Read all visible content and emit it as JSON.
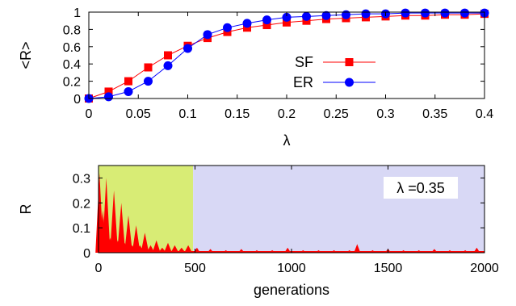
{
  "chart_data": [
    {
      "type": "line",
      "xlabel": "λ",
      "ylabel": "<R>",
      "xlim": [
        0,
        0.4
      ],
      "ylim": [
        0,
        1
      ],
      "x_ticks": [
        "0",
        "0.05",
        "0.1",
        "0.15",
        "0.2",
        "0.25",
        "0.3",
        "0.35",
        "0.4"
      ],
      "y_ticks": [
        "0",
        "0.2",
        "0.4",
        "0.6",
        "0.8",
        "1"
      ],
      "legend_position": "center-right",
      "grid": false,
      "series": [
        {
          "name": "SF",
          "color": "#ff0000",
          "marker": "square",
          "x": [
            0,
            0.02,
            0.04,
            0.06,
            0.08,
            0.1,
            0.12,
            0.14,
            0.16,
            0.18,
            0.2,
            0.22,
            0.24,
            0.26,
            0.28,
            0.3,
            0.32,
            0.34,
            0.36,
            0.38,
            0.4
          ],
          "y": [
            0.0,
            0.08,
            0.2,
            0.36,
            0.5,
            0.61,
            0.7,
            0.77,
            0.82,
            0.85,
            0.88,
            0.9,
            0.92,
            0.93,
            0.94,
            0.95,
            0.96,
            0.96,
            0.97,
            0.97,
            0.98
          ]
        },
        {
          "name": "ER",
          "color": "#0000ff",
          "marker": "circle",
          "x": [
            0,
            0.02,
            0.04,
            0.06,
            0.08,
            0.1,
            0.12,
            0.14,
            0.16,
            0.18,
            0.2,
            0.22,
            0.24,
            0.26,
            0.28,
            0.3,
            0.32,
            0.34,
            0.36,
            0.38,
            0.4
          ],
          "y": [
            0.0,
            0.02,
            0.08,
            0.2,
            0.38,
            0.58,
            0.74,
            0.82,
            0.87,
            0.91,
            0.94,
            0.95,
            0.96,
            0.97,
            0.98,
            0.98,
            0.99,
            0.99,
            0.99,
            0.99,
            0.99
          ]
        }
      ]
    },
    {
      "type": "area",
      "xlabel": "generations",
      "ylabel": "R",
      "xlim": [
        0,
        2000
      ],
      "ylim": [
        0,
        0.35
      ],
      "x_ticks": [
        "0",
        "500",
        "1000",
        "1500",
        "2000"
      ],
      "y_ticks": [
        "0",
        "0.1",
        "0.2",
        "0.3"
      ],
      "annotation": "λ =0.35",
      "grid": false,
      "regions": [
        {
          "x_start": 0,
          "x_end": 490,
          "color": "#d8ec75"
        },
        {
          "x_start": 490,
          "x_end": 2000,
          "color": "#d8d8f5"
        }
      ],
      "series": [
        {
          "color": "#ff0000",
          "x": [
            5,
            22,
            40,
            60,
            80,
            100,
            118,
            136,
            155,
            175,
            195,
            215,
            240,
            270,
            300,
            330,
            360,
            395,
            430,
            465,
            510,
            580,
            660,
            740,
            820,
            900,
            980,
            1060,
            1140,
            1220,
            1300,
            1340,
            1420,
            1500,
            1580,
            1660,
            1740,
            1820,
            1900,
            1960
          ],
          "y": [
            0.32,
            0.17,
            0.3,
            0.06,
            0.25,
            0.05,
            0.2,
            0.04,
            0.15,
            0.03,
            0.11,
            0.03,
            0.08,
            0.03,
            0.05,
            0.02,
            0.04,
            0.03,
            0.02,
            0.03,
            0.02,
            0.015,
            0.01,
            0.015,
            0.01,
            0.01,
            0.02,
            0.01,
            0.01,
            0.01,
            0.01,
            0.035,
            0.01,
            0.015,
            0.01,
            0.01,
            0.015,
            0.01,
            0.01,
            0.02
          ]
        }
      ]
    }
  ]
}
